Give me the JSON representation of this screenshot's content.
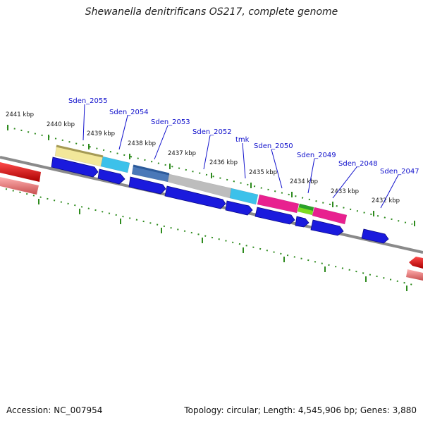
{
  "title": "Shewanella denitrificans OS217, complete genome",
  "accession": "Accession: NC_007954",
  "summary": "Topology: circular; Length: 4,545,906 bp; Genes: 3,880",
  "colors": {
    "backbone": "#8a8a8a",
    "tick": "#2e8b1e",
    "gene_label": "#1010cc",
    "cds_arrow": "#1a1add",
    "rna_red": "#ee1111",
    "rna_pink": "#f07a7a"
  },
  "ticks": [
    {
      "label": "2441 kbp"
    },
    {
      "label": "2440 kbp"
    },
    {
      "label": "2439 kbp"
    },
    {
      "label": "2438 kbp"
    },
    {
      "label": "2437 kbp"
    },
    {
      "label": "2436 kbp"
    },
    {
      "label": "2435 kbp"
    },
    {
      "label": "2434 kbp"
    },
    {
      "label": "2433 kbp"
    },
    {
      "label": "2432 kbp"
    }
  ],
  "genes": [
    {
      "name": "Sden_2055",
      "color": "#f2e79a"
    },
    {
      "name": "Sden_2054",
      "color": "#3cc1ea"
    },
    {
      "name": "Sden_2053",
      "color": "#4a78b8"
    },
    {
      "name": "Sden_2052",
      "color": "#bdbdbd"
    },
    {
      "name": "tmk",
      "color": "#3cc1ea"
    },
    {
      "name": "Sden_2050",
      "color": "#e8218f"
    },
    {
      "name": "Sden_2049",
      "color": "#7ddc1f"
    },
    {
      "name": "Sden_2048",
      "color": "#e8218f"
    },
    {
      "name": "Sden_2047",
      "color": "#1a1add"
    }
  ]
}
